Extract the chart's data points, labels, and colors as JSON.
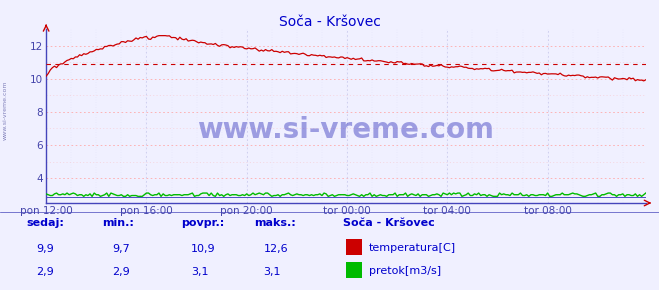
{
  "title": "Soča - Kršovec",
  "title_color": "#0000cc",
  "bg_color": "#f0f0ff",
  "plot_bg_color": "#f0f0ff",
  "grid_h_color": "#ffaaaa",
  "grid_v_color": "#ccccee",
  "ylabel_color": "#4444aa",
  "xlabel_color": "#4444aa",
  "ylim": [
    2.5,
    13.0
  ],
  "yticks": [
    4,
    6,
    8,
    10,
    12
  ],
  "temp_min": 9.7,
  "temp_max": 12.6,
  "temp_avg": 10.9,
  "temp_current": 9.9,
  "flow_min": 2.9,
  "flow_max": 3.1,
  "flow_avg": 3.1,
  "flow_current": 2.9,
  "temp_color": "#cc0000",
  "flow_color": "#00bb00",
  "avg_line_color": "#cc0000",
  "watermark": "www.si-vreme.com",
  "watermark_color": "#0000aa",
  "sidebar_text": "www.si-vreme.com",
  "sidebar_color": "#6666aa",
  "legend_title": "Soča - Kršovec",
  "legend_title_color": "#0000cc",
  "legend_temp_label": "temperatura[C]",
  "legend_flow_label": "pretok[m3/s]",
  "stats_labels": [
    "sedaj:",
    "min.:",
    "povpr.:",
    "maks.:"
  ],
  "stats_color": "#0000cc",
  "n_points": 288,
  "xticklabels": [
    "pon 12:00",
    "pon 16:00",
    "pon 20:00",
    "tor 00:00",
    "tor 04:00",
    "tor 08:00"
  ],
  "xtick_positions": [
    0,
    48,
    96,
    144,
    192,
    240
  ],
  "left_spine_color": "#4444bb",
  "bottom_spine_color": "#4444bb"
}
